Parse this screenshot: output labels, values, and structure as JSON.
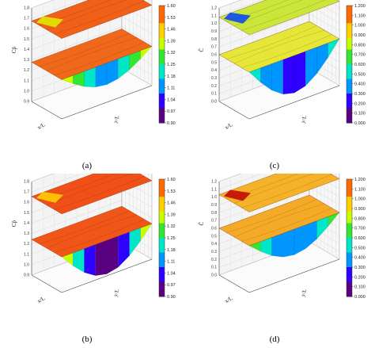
{
  "chart_data": [
    {
      "type": "surface3d",
      "caption": "(a)",
      "zlabel": "Cp̄",
      "xlabel": "x/L",
      "ylabel": "y/L",
      "z_ticks": [
        "0.9",
        "1.0",
        "1.1",
        "1.2",
        "1.3",
        "1.4",
        "1.5",
        "1.6",
        "1.7",
        "1.8"
      ],
      "colorbar_ticks": [
        "1.60",
        "1.53",
        "1.46",
        "1.39",
        "1.32",
        "1.25",
        "1.18",
        "1.11",
        "1.04",
        "0.97",
        "0.90"
      ],
      "colorbar_range": [
        0.9,
        1.6
      ],
      "upper_color": "#f05a10",
      "lower_color": "#f06412"
    },
    {
      "type": "surface3d",
      "caption": "(c)",
      "zlabel": "Ĉ",
      "xlabel": "x/L",
      "ylabel": "y/L",
      "z_ticks": [
        "0.0",
        "0.1",
        "0.2",
        "0.3",
        "0.4",
        "0.5",
        "0.6",
        "0.7",
        "0.8",
        "0.9",
        "1.0",
        "1.1",
        "1.2"
      ],
      "colorbar_ticks": [
        "1.200",
        "1.100",
        "1.000",
        "0.900",
        "0.800",
        "0.700",
        "0.600",
        "0.500",
        "0.400",
        "0.300",
        "0.200",
        "0.100",
        "0.000"
      ],
      "colorbar_range": [
        0.0,
        1.2
      ],
      "upper_color": "#c8e632",
      "lower_color": "#e6e632"
    },
    {
      "type": "surface3d",
      "caption": "(b)",
      "zlabel": "Cp̄",
      "xlabel": "x/L",
      "ylabel": "y/L",
      "z_ticks": [
        "0.9",
        "1.0",
        "1.1",
        "1.2",
        "1.3",
        "1.4",
        "1.5",
        "1.6",
        "1.7",
        "1.8"
      ],
      "colorbar_ticks": [
        "1.60",
        "1.53",
        "1.46",
        "1.39",
        "1.32",
        "1.25",
        "1.18",
        "1.11",
        "1.04",
        "0.97",
        "0.90"
      ],
      "colorbar_range": [
        0.9,
        1.6
      ],
      "upper_color": "#f04a10",
      "lower_color": "#f05010"
    },
    {
      "type": "surface3d",
      "caption": "(d)",
      "zlabel": "Ĉ",
      "xlabel": "x/L",
      "ylabel": "y/L",
      "z_ticks": [
        "0.0",
        "0.1",
        "0.2",
        "0.3",
        "0.4",
        "0.5",
        "0.6",
        "0.7",
        "0.8",
        "0.9",
        "1.0",
        "1.1",
        "1.2"
      ],
      "colorbar_ticks": [
        "1.200",
        "1.100",
        "1.000",
        "0.900",
        "0.800",
        "0.700",
        "0.600",
        "0.500",
        "0.400",
        "0.300",
        "0.200",
        "0.100",
        "0.000"
      ],
      "colorbar_range": [
        0.0,
        1.2
      ],
      "upper_color": "#f5b020",
      "lower_color": "#f5a81e"
    }
  ]
}
